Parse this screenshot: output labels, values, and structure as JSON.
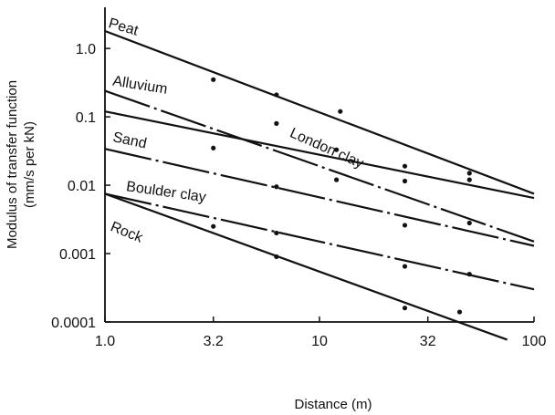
{
  "chart_data": {
    "type": "line",
    "title": "",
    "xlabel": "Distance (m)",
    "ylabel_lines": [
      "Modulus of transfer function",
      "(mm/s per kN)"
    ],
    "x_scale": "log",
    "y_scale": "log",
    "xlim": [
      1.0,
      100
    ],
    "ylim": [
      0.0001,
      4.0
    ],
    "x_ticks": [
      {
        "value": 1.0,
        "label": "1.0"
      },
      {
        "value": 3.2,
        "label": "3.2"
      },
      {
        "value": 10,
        "label": "10"
      },
      {
        "value": 32,
        "label": "32"
      },
      {
        "value": 100,
        "label": "100"
      }
    ],
    "y_ticks": [
      {
        "value": 1.0,
        "label": "1.0"
      },
      {
        "value": 0.1,
        "label": "0.1"
      },
      {
        "value": 0.01,
        "label": "0.01"
      },
      {
        "value": 0.001,
        "label": "0.001"
      },
      {
        "value": 0.0001,
        "label": "0.0001"
      }
    ],
    "grid": false,
    "legend": "none",
    "series": [
      {
        "name": "Peat",
        "style": "solid",
        "line": [
          [
            1.0,
            1.8
          ],
          [
            100,
            0.0075
          ]
        ],
        "points": [
          [
            3.2,
            0.35
          ],
          [
            6.3,
            0.21
          ],
          [
            12.5,
            0.12
          ],
          [
            50,
            0.015
          ]
        ],
        "label_x": 1.03,
        "label_y": 2.05,
        "label_angle": 16
      },
      {
        "name": "Alluvium",
        "style": "dashdot",
        "line": [
          [
            1.0,
            0.24
          ],
          [
            100,
            0.0015
          ]
        ],
        "points": [
          [
            6.3,
            0.08
          ],
          [
            25,
            0.019
          ],
          [
            50,
            0.012
          ]
        ],
        "label_x": 1.08,
        "label_y": 0.29,
        "label_angle": 9
      },
      {
        "name": "London clay",
        "style": "solid",
        "line": [
          [
            1.0,
            0.12
          ],
          [
            100,
            0.0065
          ]
        ],
        "points": [
          [
            3.2,
            0.035
          ],
          [
            12,
            0.033
          ],
          [
            25,
            0.0115
          ]
        ],
        "label_x": 7.2,
        "label_y": 0.052,
        "label_angle": 24
      },
      {
        "name": "Sand",
        "style": "dashdot",
        "line": [
          [
            1.0,
            0.034
          ],
          [
            100,
            0.0013
          ]
        ],
        "points": [
          [
            6.3,
            0.0095
          ],
          [
            12,
            0.012
          ],
          [
            25,
            0.0026
          ],
          [
            50,
            0.0028
          ]
        ],
        "label_x": 1.08,
        "label_y": 0.044,
        "label_angle": 12
      },
      {
        "name": "Boulder clay",
        "style": "dashdot",
        "line": [
          [
            1.0,
            0.0075
          ],
          [
            100,
            0.0003
          ]
        ],
        "points": [
          [
            3.2,
            0.0025
          ],
          [
            6.3,
            0.002
          ],
          [
            25,
            0.00065
          ],
          [
            50,
            0.0005
          ]
        ],
        "label_x": 1.25,
        "label_y": 0.0083,
        "label_angle": 8
      },
      {
        "name": "Rock",
        "style": "solid",
        "line": [
          [
            1.0,
            0.0075
          ],
          [
            75,
            5.5e-05
          ]
        ],
        "points": [
          [
            6.3,
            0.0009
          ],
          [
            25,
            0.00016
          ],
          [
            45,
            0.00014
          ]
        ],
        "label_x": 1.05,
        "label_y": 0.0022,
        "label_angle": 22
      }
    ]
  }
}
